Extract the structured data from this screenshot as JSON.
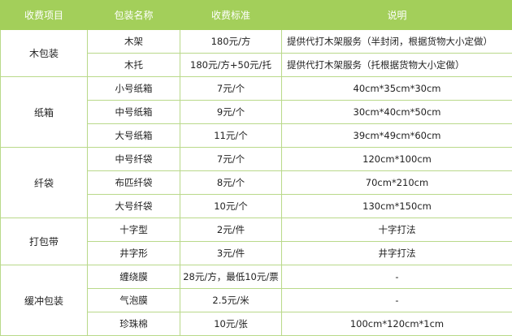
{
  "colors": {
    "header_bg": "#a3cf5a",
    "border": "#b9d98a"
  },
  "headers": [
    "收费项目",
    "包装名称",
    "收费标准",
    "说明"
  ],
  "groups": [
    {
      "category": "木包装",
      "rows": [
        {
          "name": "木架",
          "price": "180元/方",
          "note": "提供代打木架服务（半封闭，根据货物大小定做）",
          "align": "left"
        },
        {
          "name": "木托",
          "price": "180元/方+50元/托",
          "note": "提供代打木架服务（托根据货物大小定做）",
          "align": "left"
        }
      ]
    },
    {
      "category": "纸箱",
      "rows": [
        {
          "name": "小号纸箱",
          "price": "7元/个",
          "note": "40cm*35cm*30cm"
        },
        {
          "name": "中号纸箱",
          "price": "9元/个",
          "note": "30cm*40cm*50cm"
        },
        {
          "name": "大号纸箱",
          "price": "11元/个",
          "note": "39cm*49cm*60cm"
        }
      ]
    },
    {
      "category": "纤袋",
      "rows": [
        {
          "name": "中号纤袋",
          "price": "7元/个",
          "note": "120cm*100cm"
        },
        {
          "name": "布匹纤袋",
          "price": "8元/个",
          "note": "70cm*210cm"
        },
        {
          "name": "大号纤袋",
          "price": "10元/个",
          "note": "130cm*150cm"
        }
      ]
    },
    {
      "category": "打包带",
      "rows": [
        {
          "name": "十字型",
          "price": "2元/件",
          "note": "十字打法"
        },
        {
          "name": "井字形",
          "price": "3元/件",
          "note": "井字打法"
        }
      ]
    },
    {
      "category": "缓冲包装",
      "rows": [
        {
          "name": "缠绕膜",
          "price": "28元/方，最低10元/票",
          "note": "-"
        },
        {
          "name": "气泡膜",
          "price": "2.5元/米",
          "note": "-"
        },
        {
          "name": "珍珠棉",
          "price": "10元/张",
          "note": "100cm*120cm*1cm"
        }
      ]
    }
  ]
}
